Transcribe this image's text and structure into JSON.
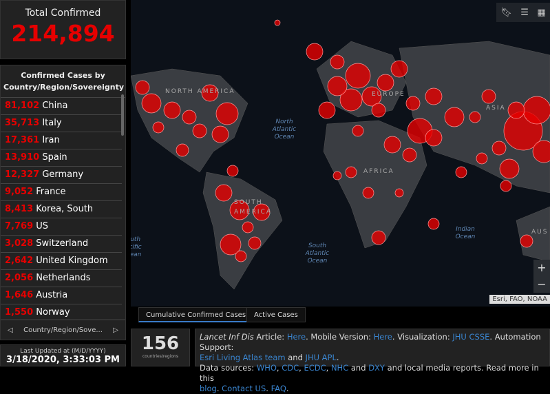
{
  "total": {
    "label": "Total Confirmed",
    "value": "214,894"
  },
  "list": {
    "header": "Confirmed Cases by Country/Region/Sovereignty",
    "items": [
      {
        "n": "81,102",
        "c": "China"
      },
      {
        "n": "35,713",
        "c": "Italy"
      },
      {
        "n": "17,361",
        "c": "Iran"
      },
      {
        "n": "13,910",
        "c": "Spain"
      },
      {
        "n": "12,327",
        "c": "Germany"
      },
      {
        "n": "9,052",
        "c": "France"
      },
      {
        "n": "8,413",
        "c": "Korea, South"
      },
      {
        "n": "7,769",
        "c": "US"
      },
      {
        "n": "3,028",
        "c": "Switzerland"
      },
      {
        "n": "2,642",
        "c": "United Kingdom"
      },
      {
        "n": "2,056",
        "c": "Netherlands"
      },
      {
        "n": "1,646",
        "c": "Austria"
      },
      {
        "n": "1,550",
        "c": "Norway"
      }
    ],
    "nav_label": "Country/Region/Sove...",
    "prev_icon": "triangle-left",
    "next_icon": "triangle-right"
  },
  "updated": {
    "label": "Last Updated at (M/D/YYYY)",
    "value": "3/18/2020, 3:33:03 PM"
  },
  "map": {
    "labels": {
      "north_america": "NORTH AMERICA",
      "north_atlantic": "North Atlantic Ocean",
      "europe": "EUROPE",
      "asia": "ASIA",
      "africa": "AFRICA",
      "south_america": "SOUTH AMERICA",
      "south_atlantic": "South Atlantic Ocean",
      "indian": "Indian Ocean",
      "south_pacific": "South Pacific Ocean",
      "australia": "AUS"
    },
    "zoom_in": "+",
    "zoom_out": "−",
    "attribution": "Esri, FAO, NOAA",
    "bubble_color": "#e60000",
    "tools": [
      "bookmark-icon",
      "list-icon",
      "grid-icon"
    ]
  },
  "tabs": [
    "Cumulative Confirmed Cases",
    "Active Cases"
  ],
  "count": {
    "value": "156",
    "label": "countries/regions"
  },
  "info": {
    "t1": "Lancet Inf Dis",
    "t2": " Article: ",
    "l1": "Here",
    "t3": ". Mobile Version: ",
    "l2": "Here",
    "t4": ". Visualization: ",
    "l3": "JHU CSSE",
    "t5": ". Automation Support: ",
    "l4": "Esri Living Atlas team",
    "t6": " and ",
    "l5": "JHU APL",
    "t7": ".",
    "t8": "Data sources: ",
    "l6": "WHO",
    "l7": "CDC",
    "l8": "ECDC",
    "l9": "NHC",
    "t9": " and ",
    "l10": "DXY",
    "t10": " and local media reports. Read more in this ",
    "l11": "blog",
    "l12": "Contact US",
    "l13": "FAQ"
  }
}
